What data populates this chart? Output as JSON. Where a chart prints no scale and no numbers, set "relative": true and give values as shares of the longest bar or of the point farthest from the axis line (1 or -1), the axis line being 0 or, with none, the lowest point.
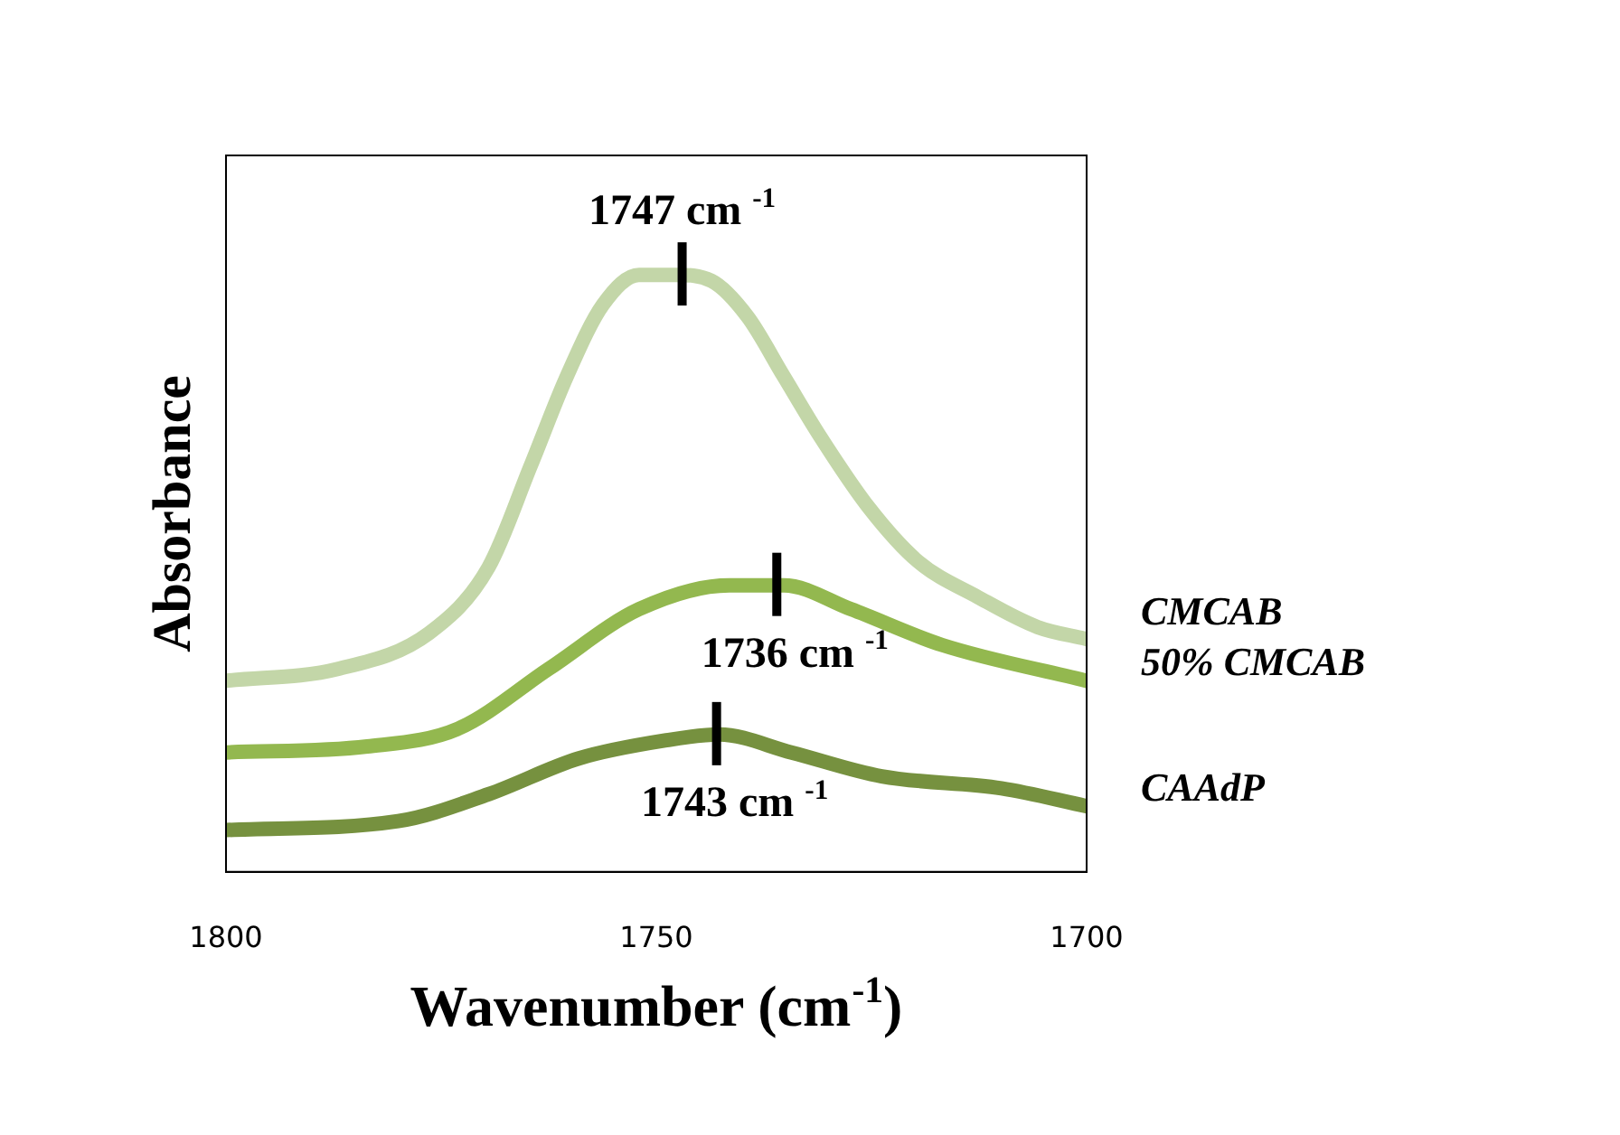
{
  "chart_data": {
    "type": "line",
    "relative": true,
    "xlabel": "Wavenumber (cm$^{-1}$)",
    "ylabel": "Absorbance",
    "xlim": [
      1800,
      1700
    ],
    "xticks": [
      1800,
      1750,
      1700
    ],
    "grid": false,
    "legend": false,
    "marker": "none",
    "line_style": "solid",
    "series": [
      {
        "name": "CMCAB",
        "color": "#c3d6a8",
        "x": [
          1800,
          1787,
          1776.4,
          1769.5,
          1764.6,
          1760.4,
          1756.2,
          1752,
          1747.8,
          1743.6,
          1739.4,
          1735.2,
          1731,
          1725.3,
          1719.6,
          1712.6,
          1705.7,
          1700
        ],
        "values": [
          0.32,
          0.34,
          0.4,
          0.51,
          0.68,
          0.83,
          0.95,
          1.0,
          1.0,
          0.99,
          0.93,
          0.83,
          0.73,
          0.61,
          0.52,
          0.46,
          0.41,
          0.39
        ]
      },
      {
        "name": "50% CMCAB",
        "color": "#93b84f",
        "x": [
          1800,
          1783.6,
          1773,
          1762.5,
          1752,
          1741.5,
          1735.2,
          1727.4,
          1716.8,
          1700
        ],
        "values": [
          0.2,
          0.21,
          0.24,
          0.34,
          0.44,
          0.48,
          0.48,
          0.44,
          0.38,
          0.32
        ]
      },
      {
        "name": "CAAdP",
        "color": "#76913f",
        "x": [
          1800,
          1780,
          1769.5,
          1759,
          1749,
          1742.7,
          1734.3,
          1723.8,
          1709.9,
          1700
        ],
        "values": [
          0.07,
          0.085,
          0.13,
          0.19,
          0.22,
          0.23,
          0.2,
          0.16,
          0.14,
          0.11
        ]
      }
    ],
    "annotations": [
      {
        "text": "1747 cm $^{-1}$",
        "x": 1747,
        "y": 1.0
      },
      {
        "text": "1736 cm $^{-1}$",
        "x": 1736,
        "y": 0.48
      },
      {
        "text": "1743 cm $^{-1}$",
        "x": 1743,
        "y": 0.23
      }
    ]
  }
}
